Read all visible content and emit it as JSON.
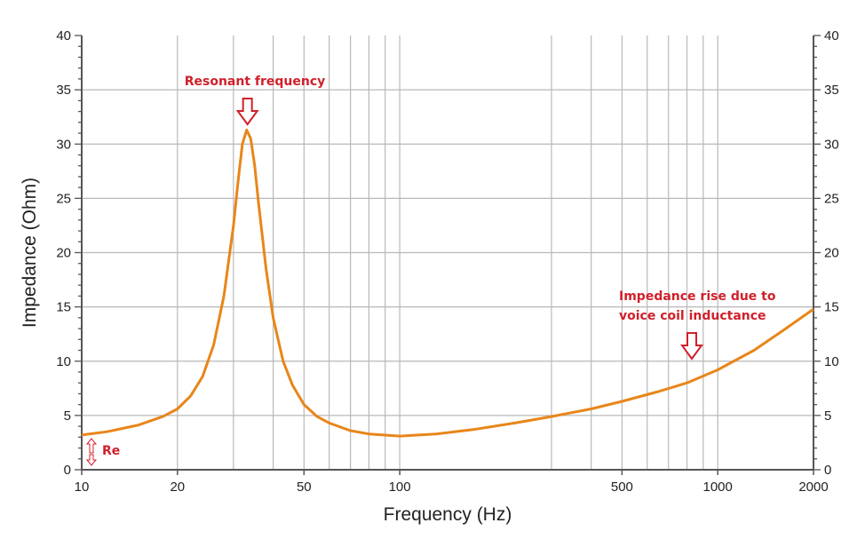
{
  "chart_data": {
    "type": "line",
    "title": "",
    "xlabel": "Frequency (Hz)",
    "ylabel": "Impedance (Ohm)",
    "xscale": "log",
    "xlim": [
      10,
      2000
    ],
    "ylim": [
      0,
      40
    ],
    "xticks": [
      10,
      20,
      50,
      100,
      500,
      1000,
      2000
    ],
    "yticks": [
      0,
      5,
      10,
      15,
      20,
      25,
      30,
      35,
      40
    ],
    "xgrid": [
      20,
      30,
      40,
      50,
      60,
      70,
      80,
      90,
      100,
      300,
      400,
      500,
      600,
      700,
      800,
      900,
      1000
    ],
    "grid": true,
    "series": [
      {
        "name": "Impedance",
        "color": "#e8861a",
        "x": [
          10,
          12,
          15,
          18,
          20,
          22,
          24,
          26,
          28,
          30,
          31,
          32,
          33,
          34,
          35,
          36,
          38,
          40,
          43,
          46,
          50,
          55,
          60,
          70,
          80,
          100,
          130,
          170,
          230,
          300,
          400,
          500,
          650,
          800,
          1000,
          1300,
          1600,
          2000
        ],
        "y": [
          3.2,
          3.5,
          4.1,
          4.9,
          5.6,
          6.8,
          8.6,
          11.5,
          16,
          22.5,
          26.5,
          30,
          31.3,
          30.5,
          28,
          24.5,
          18.5,
          14,
          10,
          7.8,
          6,
          4.9,
          4.3,
          3.6,
          3.3,
          3.1,
          3.3,
          3.7,
          4.3,
          4.9,
          5.6,
          6.3,
          7.2,
          8,
          9.2,
          11,
          12.8,
          14.8
        ]
      }
    ],
    "annotations": [
      {
        "text": "Resonant frequency",
        "x": 33,
        "y": 31.3
      },
      {
        "text_lines": [
          "Impedance rise due to",
          "voice coil inductance"
        ],
        "x": 800,
        "y": 8
      },
      {
        "text": "Re",
        "x": 10,
        "y": 3.2
      }
    ],
    "colors": {
      "annotation": "#d0202a",
      "grid": "#b8b8b8",
      "axis": "#555555"
    }
  }
}
